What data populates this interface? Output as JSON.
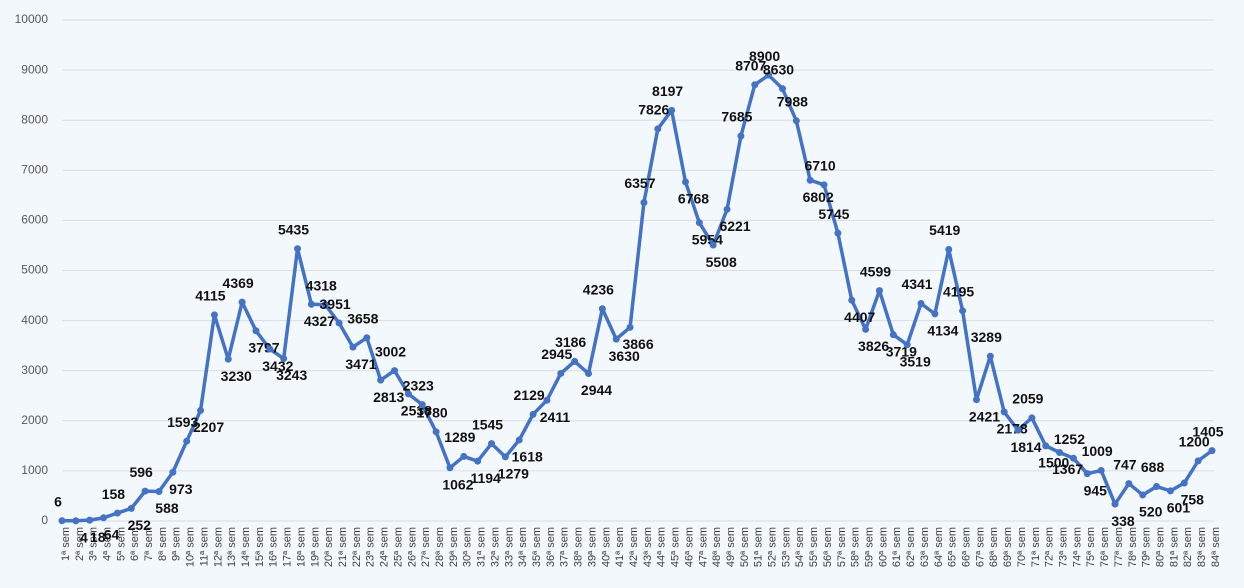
{
  "chart_data": {
    "type": "line",
    "categories": [
      "1ª sem",
      "2ª sem",
      "3ª sem",
      "4ª sem",
      "5ª sem",
      "6ª sem",
      "7ª sem",
      "8ª sem",
      "9ª sem",
      "10ª sem",
      "11ª sem",
      "12ª sem",
      "13ª sem",
      "14ª sem",
      "15ª sem",
      "16ª sem",
      "17ª sem",
      "18ª sem",
      "19ª sem",
      "20ª sem",
      "21ª sem",
      "22ª sem",
      "23ª sem",
      "24ª sem",
      "25ª sem",
      "26ª sem",
      "27ª sem",
      "28ª sem",
      "29ª sem",
      "30ª sem",
      "31ª sem",
      "32ª sem",
      "33ª sem",
      "34ª sem",
      "35ª sem",
      "36ª sem",
      "37ª sem",
      "38ª sem",
      "39ª sem",
      "40ª sem",
      "41ª sem",
      "42ª sem",
      "43ª sem",
      "44ª sem",
      "45ª sem",
      "46ª sem",
      "47ª sem",
      "48ª sem",
      "49ª sem",
      "50ª sem",
      "51ª sem",
      "52ª sem",
      "53ª sem",
      "54ª sem",
      "55ª sem",
      "56ª sem",
      "57ª sem",
      "58ª sem",
      "59ª sem",
      "60ª sem",
      "61ª sem",
      "62ª sem",
      "63ª sem",
      "64ª sem",
      "65ª sem",
      "66ª sem",
      "67ª sem",
      "68ª sem",
      "69ª sem",
      "70ª sem",
      "71ª sem",
      "72ª sem",
      "73ª sem",
      "74ª sem",
      "75ª sem",
      "76ª sem",
      "77ª sem",
      "78ª sem",
      "79ª sem",
      "80ª sem",
      "81ª sem",
      "82ª sem",
      "83ª sem",
      "84ª sem"
    ],
    "values": [
      6,
      4,
      18,
      64,
      158,
      252,
      596,
      588,
      973,
      1593,
      2207,
      4115,
      3230,
      4369,
      3797,
      3432,
      3243,
      5435,
      4327,
      4318,
      3951,
      3471,
      3658,
      2813,
      3002,
      2538,
      2323,
      1780,
      1062,
      1289,
      1194,
      1545,
      1279,
      1618,
      2129,
      2411,
      2945,
      3186,
      2944,
      4236,
      3630,
      3866,
      6357,
      7826,
      8197,
      6768,
      5954,
      5508,
      6221,
      7685,
      8707,
      8900,
      8630,
      7988,
      6802,
      6710,
      5745,
      4407,
      3826,
      4599,
      3719,
      3519,
      4341,
      4134,
      5419,
      4195,
      2421,
      3289,
      2178,
      1814,
      2059,
      1500,
      1367,
      1252,
      945,
      1009,
      338,
      747,
      520,
      688,
      601,
      758,
      1200,
      1405
    ],
    "color": "#4472c4",
    "ylim": [
      0,
      10000
    ],
    "yticks": [
      0,
      1000,
      2000,
      3000,
      4000,
      5000,
      6000,
      7000,
      8000,
      9000,
      10000
    ],
    "grid": true
  }
}
